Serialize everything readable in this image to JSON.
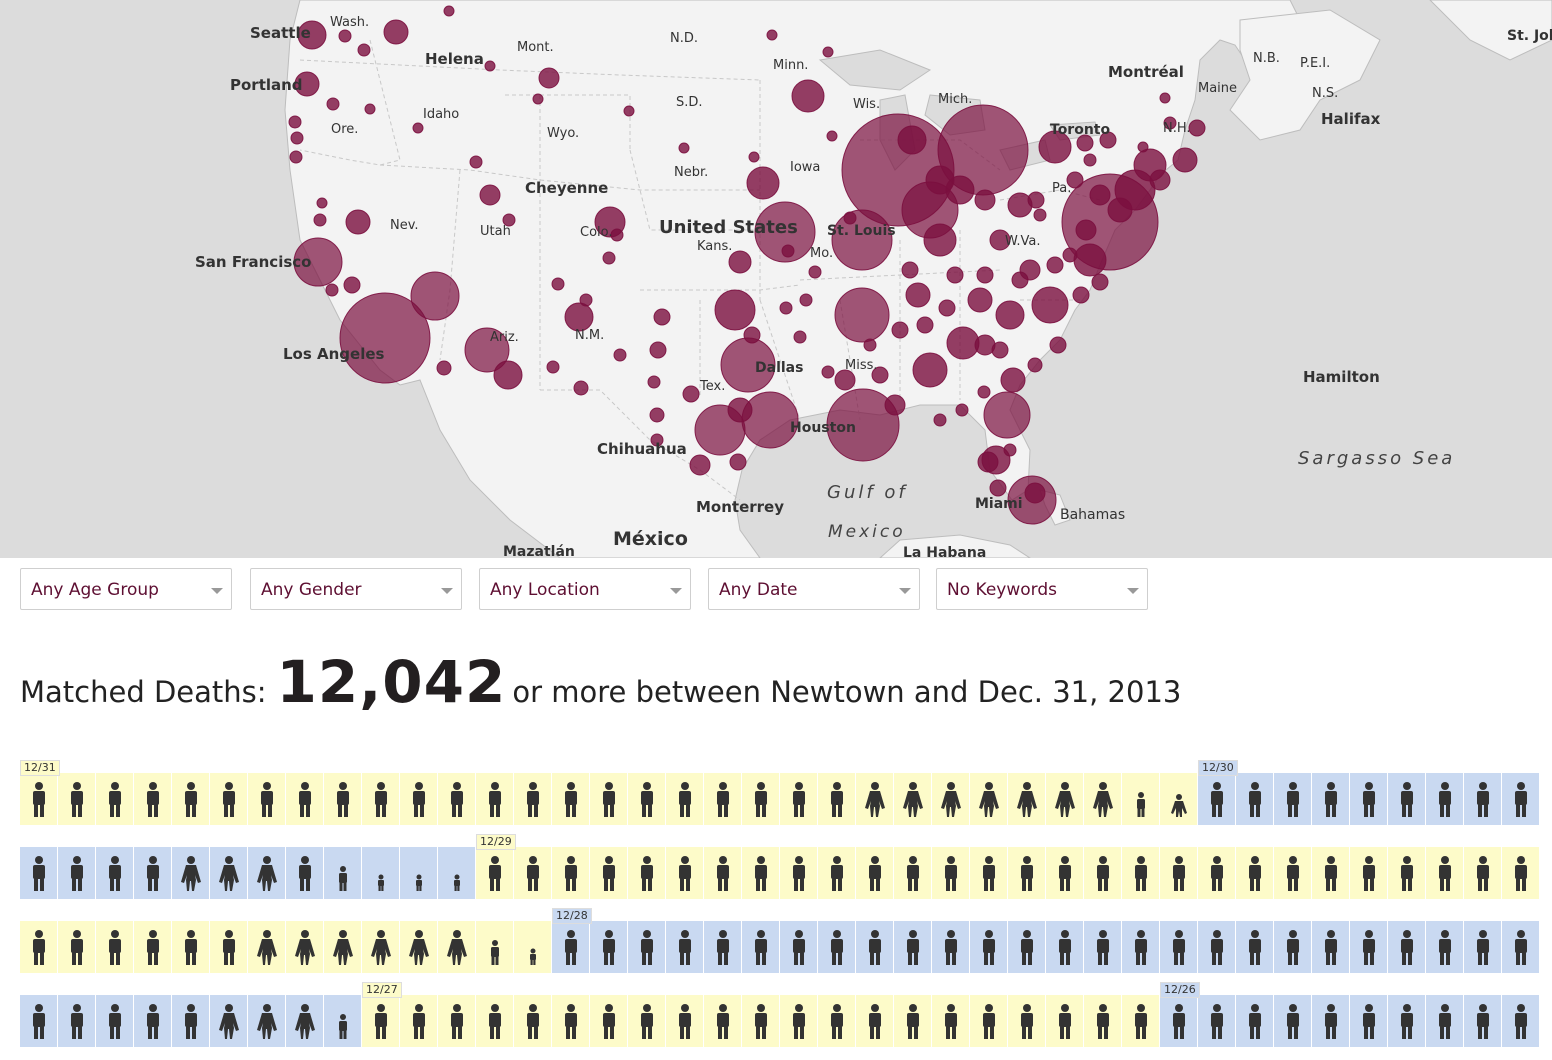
{
  "map": {
    "labels": [
      {
        "text": "Seattle",
        "city": true
      },
      {
        "text": "Wash."
      },
      {
        "text": "Portland",
        "city": true
      },
      {
        "text": "Helena",
        "city": true
      },
      {
        "text": "Mont."
      },
      {
        "text": "N.D."
      },
      {
        "text": "Minn."
      },
      {
        "text": "Idaho"
      },
      {
        "text": "Ore."
      },
      {
        "text": "S.D."
      },
      {
        "text": "Wyo."
      },
      {
        "text": "Wis."
      },
      {
        "text": "Mich."
      },
      {
        "text": "Montréal",
        "city": true
      },
      {
        "text": "N.B."
      },
      {
        "text": "P.E.I."
      },
      {
        "text": "St. John",
        "city": true
      },
      {
        "text": "Maine"
      },
      {
        "text": "N.S."
      },
      {
        "text": "Halifax",
        "city": true
      },
      {
        "text": "Toronto",
        "city": true
      },
      {
        "text": "Cheyenne",
        "city": true
      },
      {
        "text": "Nebr."
      },
      {
        "text": "Iowa"
      },
      {
        "text": "Nev."
      },
      {
        "text": "Utah"
      },
      {
        "text": "Colo."
      },
      {
        "text": "United States",
        "city": true
      },
      {
        "text": "Kans."
      },
      {
        "text": "Mo."
      },
      {
        "text": "St. Louis",
        "city": true
      },
      {
        "text": "W.Va."
      },
      {
        "text": "Pa."
      },
      {
        "text": "N.H."
      },
      {
        "text": "San Francisco",
        "city": true
      },
      {
        "text": "Los Angeles",
        "city": true
      },
      {
        "text": "Ariz."
      },
      {
        "text": "N.M."
      },
      {
        "text": "Tex."
      },
      {
        "text": "Dallas",
        "city": true
      },
      {
        "text": "Houston",
        "city": true
      },
      {
        "text": "Miss."
      },
      {
        "text": "Chihuahua",
        "city": true
      },
      {
        "text": "Monterrey",
        "city": true
      },
      {
        "text": "México",
        "city": true
      },
      {
        "text": "Mazatlán",
        "city": true
      },
      {
        "text": "La Habana",
        "city": true
      },
      {
        "text": "Miami",
        "city": true
      },
      {
        "text": "Bahamas"
      },
      {
        "text": "Hamilton",
        "city": true
      },
      {
        "text": "Gulf of"
      },
      {
        "text": "Mexico"
      },
      {
        "text": "Sargasso Sea"
      }
    ],
    "bubble_color": "#7b0f3f"
  },
  "filters": [
    {
      "label": "Any Age Group"
    },
    {
      "label": "Any Gender"
    },
    {
      "label": "Any Location"
    },
    {
      "label": "Any Date"
    },
    {
      "label": "No Keywords"
    }
  ],
  "headline": {
    "prefix": "Matched Deaths:",
    "count": "12,042",
    "suffix": "or more between Newtown and Dec. 31, 2013"
  },
  "grid": {
    "date_labels": [
      "12/31",
      "12/30",
      "12/29",
      "12/28",
      "12/27",
      "12/26"
    ],
    "colors": {
      "day_a": "#fdfbc9",
      "day_b": "#c9d9f1",
      "figure": "#333333"
    },
    "rows": [
      "y:MMMMMMMMMMMMMMMMMMMMMMFFFFFFFCG|b:MMMMMMMMM",
      "b:MMMMFFFMCKKK|y:MMMMMMMMMMMMMMMMMMMMMMMMMMMM",
      "y:MMMMMMFFFFFFCK|b:MMMMMMMMMMMMMMMMMMMMMMMMMM",
      "b:MMMMMFFFC|y:MMMMMMMMMMMMMMMMMMMMM|b:MMMMMMMMMM"
    ]
  }
}
